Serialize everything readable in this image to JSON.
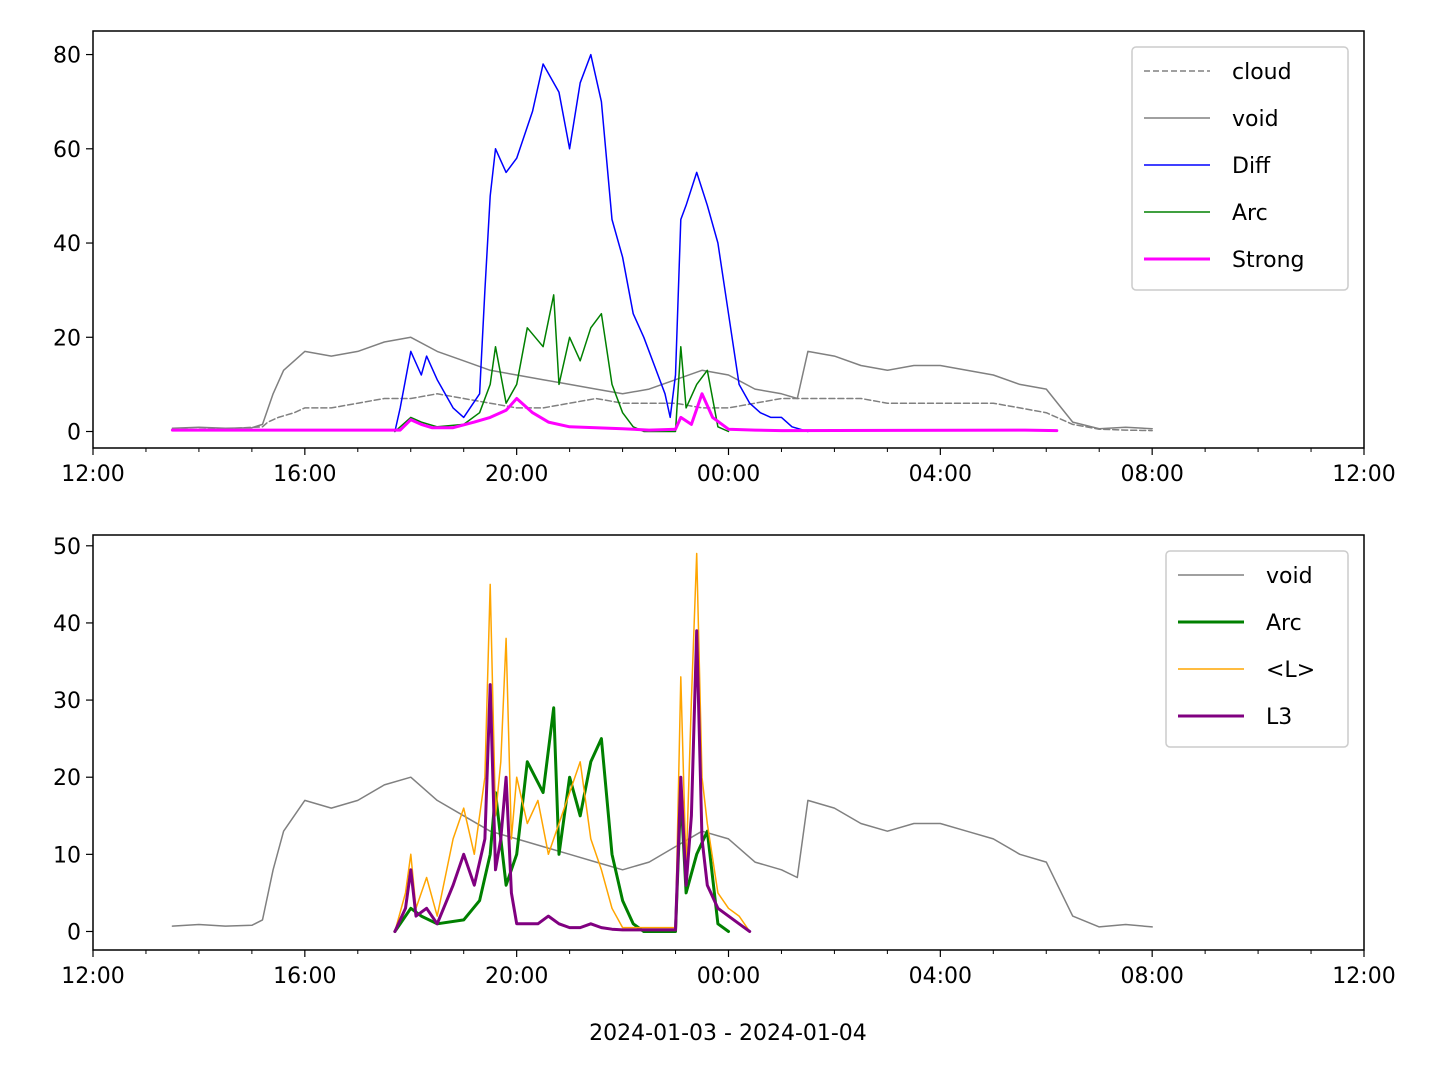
{
  "figure": {
    "xlabel": "2024-01-03 - 2024-01-04"
  },
  "chart_data": [
    {
      "type": "line",
      "title": "",
      "xlabel": "",
      "ylabel": "",
      "x_unit": "hours since 2024-01-03 12:00",
      "xlim": [
        0,
        24
      ],
      "ylim": [
        -3.5,
        85
      ],
      "x_ticks": [
        0,
        4,
        8,
        12,
        16,
        20,
        24
      ],
      "x_tick_labels": [
        "12:00",
        "16:00",
        "20:00",
        "00:00",
        "04:00",
        "08:00",
        "12:00"
      ],
      "y_ticks": [
        0,
        20,
        40,
        60,
        80
      ],
      "y_tick_labels": [
        "0",
        "20",
        "40",
        "60",
        "80"
      ],
      "legend_position": "top-right",
      "series": [
        {
          "name": "cloud",
          "color": "#808080",
          "style": "dashed",
          "width": 1.5,
          "x": [
            1.5,
            2.5,
            3.2,
            3.3,
            3.5,
            3.8,
            4,
            4.5,
            5,
            5.5,
            6,
            6.5,
            7,
            7.5,
            8,
            8.5,
            9,
            9.5,
            10,
            10.5,
            11,
            11.5,
            12,
            12.5,
            13,
            13.5,
            14,
            14.5,
            15,
            15.5,
            16,
            16.5,
            17,
            17.5,
            18,
            18.5,
            19,
            19.5,
            20
          ],
          "y": [
            0.4,
            0.6,
            1,
            2,
            3,
            4,
            5,
            5,
            6,
            7,
            7,
            8,
            7,
            6,
            5,
            5,
            6,
            7,
            6,
            6,
            6,
            5,
            5,
            6,
            7,
            7,
            7,
            7,
            6,
            6,
            6,
            6,
            6,
            5,
            4,
            1.5,
            0.5,
            0.3,
            0.2
          ]
        },
        {
          "name": "void",
          "color": "#808080",
          "style": "solid",
          "width": 1.5,
          "x": [
            1.5,
            2,
            2.5,
            3,
            3.2,
            3.4,
            3.6,
            4,
            4.5,
            5,
            5.5,
            6,
            6.5,
            7,
            7.5,
            8,
            8.5,
            9,
            9.5,
            10,
            10.5,
            11,
            11.5,
            12,
            12.5,
            13,
            13.3,
            13.5,
            14,
            14.5,
            15,
            15.5,
            16,
            16.5,
            17,
            17.5,
            18,
            18.5,
            19,
            19.5,
            20
          ],
          "y": [
            0.7,
            0.9,
            0.7,
            0.8,
            1.5,
            8,
            13,
            17,
            16,
            17,
            19,
            20,
            17,
            15,
            13,
            12,
            11,
            10,
            9,
            8,
            9,
            11,
            13,
            12,
            9,
            8,
            7,
            17,
            16,
            14,
            13,
            14,
            14,
            13,
            12,
            10,
            9,
            2,
            0.6,
            0.9,
            0.6
          ]
        },
        {
          "name": "Diff",
          "color": "#0000ff",
          "style": "solid",
          "width": 1.5,
          "x": [
            5.7,
            5.8,
            6,
            6.2,
            6.3,
            6.5,
            6.8,
            7,
            7.3,
            7.4,
            7.5,
            7.6,
            7.8,
            8,
            8.3,
            8.5,
            8.8,
            9,
            9.2,
            9.4,
            9.6,
            9.8,
            10,
            10.2,
            10.4,
            10.6,
            10.8,
            10.9,
            11,
            11.1,
            11.2,
            11.4,
            11.6,
            11.8,
            12,
            12.2,
            12.4,
            12.6,
            12.8,
            13,
            13.2,
            13.5
          ],
          "y": [
            0,
            5,
            17,
            12,
            16,
            11,
            5,
            3,
            8,
            30,
            50,
            60,
            55,
            58,
            68,
            78,
            72,
            60,
            74,
            80,
            70,
            45,
            37,
            25,
            20,
            14,
            8,
            3,
            12,
            45,
            48,
            55,
            48,
            40,
            25,
            10,
            6,
            4,
            3,
            3,
            1,
            0
          ]
        },
        {
          "name": "Arc",
          "color": "#008000",
          "style": "solid",
          "width": 1.5,
          "x": [
            5.7,
            6,
            6.2,
            6.5,
            7,
            7.3,
            7.5,
            7.6,
            7.8,
            8,
            8.2,
            8.5,
            8.7,
            8.8,
            9,
            9.2,
            9.4,
            9.6,
            9.8,
            10,
            10.2,
            10.4,
            10.6,
            10.8,
            11,
            11.1,
            11.2,
            11.4,
            11.6,
            11.8,
            12
          ],
          "y": [
            0,
            3,
            2,
            1,
            1.5,
            4,
            10,
            18,
            6,
            10,
            22,
            18,
            29,
            10,
            20,
            15,
            22,
            25,
            10,
            4,
            1,
            0,
            0,
            0,
            0,
            18,
            5,
            10,
            13,
            1,
            0
          ]
        },
        {
          "name": "Strong",
          "color": "#ff00ff",
          "style": "solid",
          "width": 3,
          "x": [
            1.5,
            5.8,
            6,
            6.2,
            6.4,
            6.8,
            7.2,
            7.5,
            7.8,
            8,
            8.3,
            8.6,
            9,
            9.5,
            10,
            10.5,
            10.8,
            11,
            11.1,
            11.3,
            11.5,
            11.7,
            12,
            12.5,
            13,
            17.6,
            18.2
          ],
          "y": [
            0.3,
            0.3,
            2.5,
            1.5,
            0.8,
            0.8,
            2,
            3,
            4.5,
            7,
            4,
            2,
            1,
            0.8,
            0.6,
            0.3,
            0.4,
            0.5,
            3,
            1.5,
            8,
            3,
            0.5,
            0.3,
            0.2,
            0.3,
            0.2
          ]
        }
      ]
    },
    {
      "type": "line",
      "title": "",
      "xlabel": "2024-01-03 - 2024-01-04",
      "ylabel": "",
      "x_unit": "hours since 2024-01-03 12:00",
      "xlim": [
        0,
        24
      ],
      "ylim": [
        -2.4,
        51.4
      ],
      "x_ticks": [
        0,
        4,
        8,
        12,
        16,
        20,
        24
      ],
      "x_tick_labels": [
        "12:00",
        "16:00",
        "20:00",
        "00:00",
        "04:00",
        "08:00",
        "12:00"
      ],
      "y_ticks": [
        0,
        10,
        20,
        30,
        40,
        50
      ],
      "y_tick_labels": [
        "0",
        "10",
        "20",
        "30",
        "40",
        "50"
      ],
      "legend_position": "top-right",
      "series": [
        {
          "name": "void",
          "color": "#808080",
          "style": "solid",
          "width": 1.5,
          "x": [
            1.5,
            2,
            2.5,
            3,
            3.2,
            3.4,
            3.6,
            4,
            4.5,
            5,
            5.5,
            6,
            6.5,
            7,
            7.5,
            8,
            8.5,
            9,
            9.5,
            10,
            10.5,
            11,
            11.5,
            12,
            12.5,
            13,
            13.3,
            13.5,
            14,
            14.5,
            15,
            15.5,
            16,
            16.5,
            17,
            17.5,
            18,
            18.5,
            19,
            19.5,
            20
          ],
          "y": [
            0.7,
            0.9,
            0.7,
            0.8,
            1.5,
            8,
            13,
            17,
            16,
            17,
            19,
            20,
            17,
            15,
            13,
            12,
            11,
            10,
            9,
            8,
            9,
            11,
            13,
            12,
            9,
            8,
            7,
            17,
            16,
            14,
            13,
            14,
            14,
            13,
            12,
            10,
            9,
            2,
            0.6,
            0.9,
            0.6
          ]
        },
        {
          "name": "Arc",
          "color": "#008000",
          "style": "solid",
          "width": 3,
          "x": [
            5.7,
            6,
            6.2,
            6.5,
            7,
            7.3,
            7.5,
            7.6,
            7.8,
            8,
            8.2,
            8.5,
            8.7,
            8.8,
            9,
            9.2,
            9.4,
            9.6,
            9.8,
            10,
            10.2,
            10.4,
            10.6,
            10.8,
            11,
            11.1,
            11.2,
            11.4,
            11.6,
            11.8,
            12
          ],
          "y": [
            0,
            3,
            2,
            1,
            1.5,
            4,
            10,
            18,
            6,
            10,
            22,
            18,
            29,
            10,
            20,
            15,
            22,
            25,
            10,
            4,
            1,
            0,
            0,
            0,
            0,
            18,
            5,
            10,
            13,
            1,
            0
          ]
        },
        {
          "name": "<L>",
          "color": "#ffa500",
          "style": "solid",
          "width": 1.5,
          "x": [
            5.7,
            5.9,
            6,
            6.1,
            6.3,
            6.5,
            6.8,
            7,
            7.2,
            7.4,
            7.5,
            7.6,
            7.7,
            7.8,
            7.9,
            8,
            8.2,
            8.4,
            8.6,
            8.8,
            9,
            9.2,
            9.4,
            9.6,
            9.8,
            10,
            10.5,
            11,
            11.1,
            11.2,
            11.3,
            11.4,
            11.5,
            11.6,
            11.8,
            12,
            12.2,
            12.4
          ],
          "y": [
            0,
            5,
            10,
            3,
            7,
            2,
            12,
            16,
            10,
            20,
            45,
            15,
            22,
            38,
            12,
            20,
            14,
            17,
            10,
            14,
            18,
            22,
            12,
            8,
            3,
            0.5,
            0.5,
            0.5,
            33,
            8,
            30,
            49,
            20,
            14,
            5,
            3,
            2,
            0
          ]
        },
        {
          "name": "L3",
          "color": "#800080",
          "style": "solid",
          "width": 3,
          "x": [
            5.7,
            5.9,
            6,
            6.1,
            6.3,
            6.5,
            6.8,
            7,
            7.2,
            7.4,
            7.5,
            7.6,
            7.7,
            7.8,
            7.9,
            8,
            8.2,
            8.4,
            8.6,
            8.8,
            9,
            9.2,
            9.4,
            9.6,
            9.8,
            10,
            10.5,
            11,
            11.1,
            11.2,
            11.3,
            11.4,
            11.5,
            11.6,
            11.8,
            12,
            12.2,
            12.4
          ],
          "y": [
            0,
            3,
            8,
            2,
            3,
            1,
            6,
            10,
            6,
            12,
            32,
            8,
            12,
            20,
            5,
            1,
            1,
            1,
            2,
            1,
            0.5,
            0.5,
            1,
            0.5,
            0.3,
            0.2,
            0.2,
            0.2,
            20,
            6,
            15,
            39,
            12,
            6,
            3,
            2,
            1,
            0
          ]
        }
      ]
    }
  ]
}
